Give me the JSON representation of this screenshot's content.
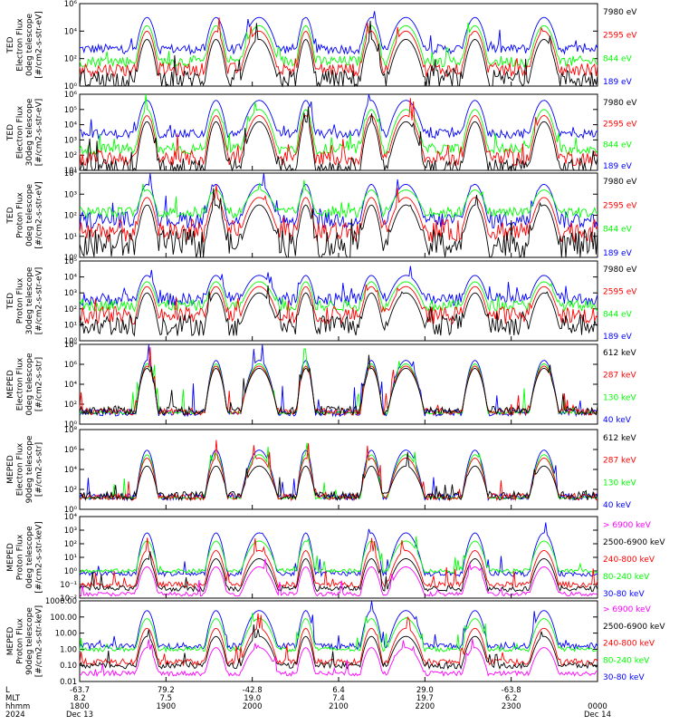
{
  "chart_data": {
    "type": "line",
    "colors": {
      "blue": "#0000ff",
      "red": "#ff0000",
      "green": "#00ff00",
      "black": "#000000",
      "magenta": "#ff00ff"
    },
    "panels": [
      {
        "ylabel": [
          "TED",
          "Electron Flux",
          "0deg telescope",
          "[#/cm2-s-str-eV]"
        ],
        "yticks": [
          "10⁶",
          "10⁴",
          "10²",
          "10⁰"
        ],
        "ylog": [
          0,
          6
        ],
        "legend": [
          {
            "label": "7980 eV",
            "color": "#000000"
          },
          {
            "label": "2595 eV",
            "color": "#ff0000"
          },
          {
            "label": "844 eV",
            "color": "#00ff00"
          },
          {
            "label": "189 eV",
            "color": "#0000ff"
          }
        ],
        "series": [
          {
            "color": "#0000ff",
            "base": 2.7,
            "peak": 5.0,
            "noise": 0.35
          },
          {
            "color": "#00ff00",
            "base": 1.8,
            "peak": 4.4,
            "noise": 0.4
          },
          {
            "color": "#ff0000",
            "base": 1.2,
            "peak": 4.0,
            "noise": 0.5
          },
          {
            "color": "#000000",
            "base": 0.5,
            "peak": 3.4,
            "noise": 0.7
          }
        ]
      },
      {
        "ylabel": [
          "TED",
          "Electron Flux",
          "30deg telescope",
          "[#/cm2-s-str-eV]"
        ],
        "yticks": [
          "10⁶",
          "10⁵",
          "10⁴",
          "10³",
          "10²",
          "10¹"
        ],
        "ylog": [
          1,
          6
        ],
        "legend": [
          {
            "label": "7980 eV",
            "color": "#000000"
          },
          {
            "label": "2595 eV",
            "color": "#ff0000"
          },
          {
            "label": "844 eV",
            "color": "#00ff00"
          },
          {
            "label": "189 eV",
            "color": "#0000ff"
          }
        ],
        "series": [
          {
            "color": "#0000ff",
            "base": 3.4,
            "peak": 5.6,
            "noise": 0.3
          },
          {
            "color": "#00ff00",
            "base": 2.4,
            "peak": 5.0,
            "noise": 0.35
          },
          {
            "color": "#ff0000",
            "base": 1.8,
            "peak": 4.6,
            "noise": 0.5
          },
          {
            "color": "#000000",
            "base": 1.2,
            "peak": 4.2,
            "noise": 0.6
          }
        ]
      },
      {
        "ylabel": [
          "TED",
          "Proton Flux",
          "0deg telescope",
          "[#/cm2-s-str-eV]"
        ],
        "yticks": [
          "10⁴",
          "10³",
          "10²",
          "10¹",
          "10⁰"
        ],
        "ylog": [
          0,
          4.5
        ],
        "legend": [
          {
            "label": "7980 eV",
            "color": "#000000"
          },
          {
            "label": "2595 eV",
            "color": "#ff0000"
          },
          {
            "label": "844 eV",
            "color": "#00ff00"
          },
          {
            "label": "189 eV",
            "color": "#0000ff"
          }
        ],
        "series": [
          {
            "color": "#0000ff",
            "base": 2.0,
            "peak": 3.9,
            "noise": 0.45
          },
          {
            "color": "#00ff00",
            "base": 2.4,
            "peak": 3.6,
            "noise": 0.3
          },
          {
            "color": "#ff0000",
            "base": 1.4,
            "peak": 3.2,
            "noise": 0.6
          },
          {
            "color": "#000000",
            "base": 0.7,
            "peak": 2.8,
            "noise": 0.8
          }
        ]
      },
      {
        "ylabel": [
          "TED",
          "Proton Flux",
          "30deg telescope",
          "[#/cm2-s-str-eV]"
        ],
        "yticks": [
          "10⁵",
          "10⁴",
          "10³",
          "10²",
          "10¹",
          "10⁰"
        ],
        "ylog": [
          0,
          5
        ],
        "legend": [
          {
            "label": "7980 eV",
            "color": "#000000"
          },
          {
            "label": "2595 eV",
            "color": "#ff0000"
          },
          {
            "label": "844 eV",
            "color": "#00ff00"
          },
          {
            "label": "189 eV",
            "color": "#0000ff"
          }
        ],
        "series": [
          {
            "color": "#0000ff",
            "base": 2.6,
            "peak": 4.1,
            "noise": 0.4
          },
          {
            "color": "#00ff00",
            "base": 2.2,
            "peak": 3.7,
            "noise": 0.35
          },
          {
            "color": "#ff0000",
            "base": 1.6,
            "peak": 3.4,
            "noise": 0.55
          },
          {
            "color": "#000000",
            "base": 1.0,
            "peak": 3.0,
            "noise": 0.7
          }
        ]
      },
      {
        "ylabel": [
          "MEPED",
          "Electron Flux",
          "0deg telescope",
          "[#/cm2-s-str]"
        ],
        "yticks": [
          "10⁸",
          "10⁶",
          "10⁴",
          "10²",
          "10⁰"
        ],
        "ylog": [
          1,
          8
        ],
        "legend": [
          {
            "label": "612 keV",
            "color": "#000000"
          },
          {
            "label": "287 keV",
            "color": "#ff0000"
          },
          {
            "label": "130 keV",
            "color": "#00ff00"
          },
          {
            "label": "40 keV",
            "color": "#0000ff"
          }
        ],
        "series": [
          {
            "color": "#0000ff",
            "base": 2.0,
            "peak": 6.6,
            "noise": 0.3
          },
          {
            "color": "#00ff00",
            "base": 2.0,
            "peak": 6.3,
            "noise": 0.1
          },
          {
            "color": "#ff0000",
            "base": 2.1,
            "peak": 6.1,
            "noise": 0.3
          },
          {
            "color": "#000000",
            "base": 2.2,
            "peak": 5.9,
            "noise": 0.4
          }
        ]
      },
      {
        "ylabel": [
          "MEPED",
          "Electron Flux",
          "90deg telescope",
          "[#/cm2-s-str]"
        ],
        "yticks": [
          "10⁸",
          "10⁶",
          "10⁴",
          "10²",
          "10⁰"
        ],
        "ylog": [
          1,
          8
        ],
        "legend": [
          {
            "label": "612 keV",
            "color": "#000000"
          },
          {
            "label": "287 keV",
            "color": "#ff0000"
          },
          {
            "label": "130 keV",
            "color": "#00ff00"
          },
          {
            "label": "40 keV",
            "color": "#0000ff"
          }
        ],
        "series": [
          {
            "color": "#0000ff",
            "base": 2.1,
            "peak": 6.2,
            "noise": 0.3
          },
          {
            "color": "#00ff00",
            "base": 2.0,
            "peak": 5.8,
            "noise": 0.1
          },
          {
            "color": "#ff0000",
            "base": 2.1,
            "peak": 5.5,
            "noise": 0.3
          },
          {
            "color": "#000000",
            "base": 2.2,
            "peak": 4.8,
            "noise": 0.4
          }
        ]
      },
      {
        "ylabel": [
          "MEPED",
          "Proton Flux",
          "0deg telescope",
          "[#/cm2-s-str-keV]"
        ],
        "yticks": [
          "10⁴",
          "10³",
          "10²",
          "10¹",
          "10⁰",
          "10⁻¹",
          "10⁻²"
        ],
        "ylog": [
          -2,
          4
        ],
        "legend": [
          {
            "label": "> 6900 keV",
            "color": "#ff00ff"
          },
          {
            "label": "2500-6900 keV",
            "color": "#000000"
          },
          {
            "label": "240-800 keV",
            "color": "#ff0000"
          },
          {
            "label": "80-240 keV",
            "color": "#00ff00"
          },
          {
            "label": "30-80 keV",
            "color": "#0000ff"
          }
        ],
        "series": [
          {
            "color": "#0000ff",
            "base": -0.2,
            "peak": 2.8,
            "noise": 0.2
          },
          {
            "color": "#00ff00",
            "base": 0.0,
            "peak": 2.2,
            "noise": 0.15
          },
          {
            "color": "#ff0000",
            "base": -1.0,
            "peak": 1.5,
            "noise": 0.2
          },
          {
            "color": "#000000",
            "base": -1.3,
            "peak": 0.9,
            "noise": 0.2
          },
          {
            "color": "#ff00ff",
            "base": -1.7,
            "peak": 0.3,
            "noise": 0.15
          }
        ]
      },
      {
        "ylabel": [
          "MEPED",
          "Proton Flux",
          "90deg telescope",
          "[#/cm2-s-str-keV]"
        ],
        "yticks": [
          "1000.00",
          "100.00",
          "10.00",
          "1.00",
          "0.10",
          "0.01"
        ],
        "ylog": [
          -2,
          3
        ],
        "legend": [
          {
            "label": "> 6900 keV",
            "color": "#ff00ff"
          },
          {
            "label": "2500-6900 keV",
            "color": "#000000"
          },
          {
            "label": "240-800 keV",
            "color": "#ff0000"
          },
          {
            "label": "80-240 keV",
            "color": "#00ff00"
          },
          {
            "label": "30-80 keV",
            "color": "#0000ff"
          }
        ],
        "series": [
          {
            "color": "#0000ff",
            "base": 0.2,
            "peak": 2.4,
            "noise": 0.2
          },
          {
            "color": "#00ff00",
            "base": 0.0,
            "peak": 1.9,
            "noise": 0.15
          },
          {
            "color": "#ff0000",
            "base": -0.8,
            "peak": 1.3,
            "noise": 0.2
          },
          {
            "color": "#000000",
            "base": -1.0,
            "peak": 0.8,
            "noise": 0.2
          },
          {
            "color": "#ff00ff",
            "base": -1.5,
            "peak": 0.1,
            "noise": 0.15
          }
        ]
      }
    ],
    "x_axis": {
      "row_labels": [
        "L",
        "MLT",
        "hhmm",
        "2024"
      ],
      "ticks": [
        {
          "x": 0,
          "lines": [
            "-63.7",
            "8.2",
            "1800",
            "Dec 13"
          ]
        },
        {
          "x": 1,
          "lines": [
            "79.2",
            "7.5",
            "1900",
            ""
          ]
        },
        {
          "x": 2,
          "lines": [
            "-42.8",
            "19.0",
            "2000",
            ""
          ]
        },
        {
          "x": 3,
          "lines": [
            "6.4",
            "7.4",
            "2100",
            ""
          ]
        },
        {
          "x": 4,
          "lines": [
            "29.0",
            "19.7",
            "2200",
            ""
          ]
        },
        {
          "x": 5,
          "lines": [
            "-63.8",
            "6.2",
            "2300",
            ""
          ]
        },
        {
          "x": 6,
          "lines": [
            "",
            "",
            "0000",
            "Dec 14"
          ]
        }
      ],
      "range_hours": [
        0,
        6
      ]
    },
    "passes": [
      {
        "t": 0.78,
        "w": 0.06
      },
      {
        "t": 1.58,
        "w": 0.06
      },
      {
        "t": 2.08,
        "w": 0.1
      },
      {
        "t": 2.62,
        "w": 0.05
      },
      {
        "t": 3.38,
        "w": 0.06
      },
      {
        "t": 3.78,
        "w": 0.1
      },
      {
        "t": 4.58,
        "w": 0.07
      },
      {
        "t": 5.38,
        "w": 0.08
      }
    ]
  }
}
